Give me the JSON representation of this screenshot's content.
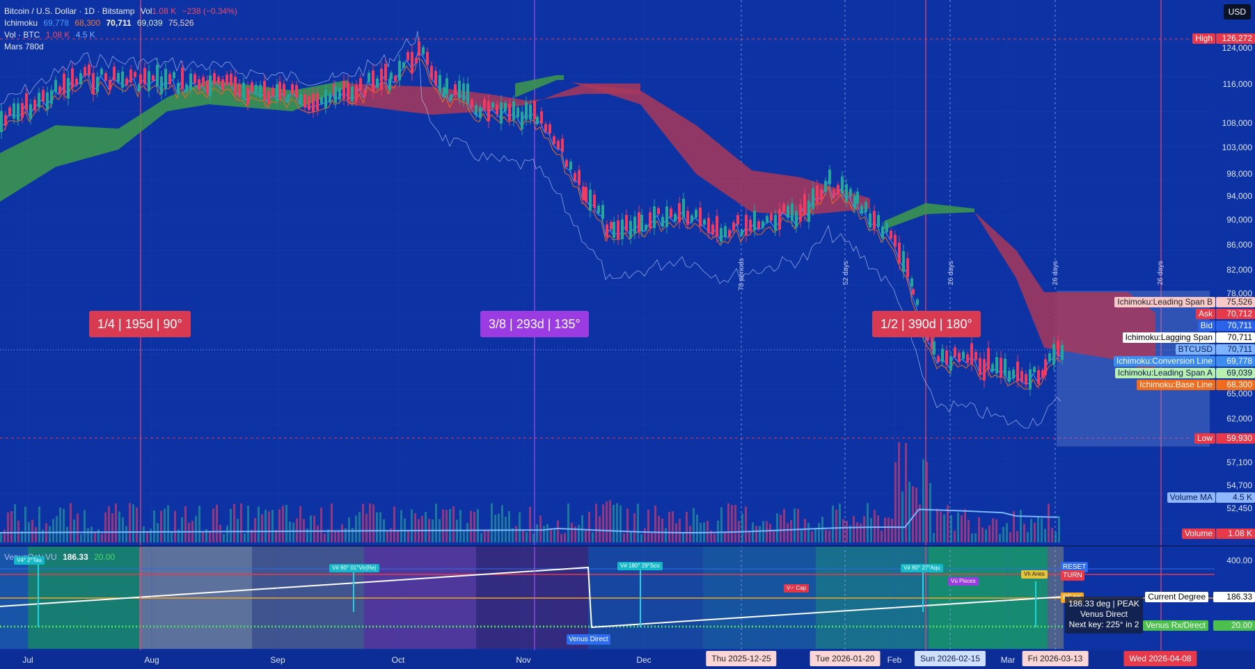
{
  "header": {
    "symbol": "Bitcoin / U.S. Dollar · 1D · Bitstamp",
    "vol_label": "Vol",
    "vol_value": "1.08 K",
    "change": "−238 (−0.34%)",
    "ichimoku_label": "Ichimoku",
    "ichimoku_values": [
      "69,778",
      "68,300",
      "70,711",
      "69,039",
      "75,526"
    ],
    "vol_btc_label": "Vol · BTC",
    "vol_btc_values": [
      "1.08 K",
      "4.5 K"
    ],
    "mars_label": "Mars 780d",
    "currency_button": "USD"
  },
  "y_axis": {
    "ticks": [
      "124,000",
      "116,000",
      "108,000",
      "103,000",
      "98,000",
      "94,000",
      "90,000",
      "86,000",
      "82,000",
      "78,000",
      "65,000",
      "62,000",
      "57,100",
      "54,700",
      "52,450"
    ],
    "scale": "log"
  },
  "price_labels": [
    {
      "name": "High",
      "value": "126,272",
      "color": "#e8394a"
    },
    {
      "name": "Ichimoku:Leading Span B",
      "value": "75,526",
      "color": "#f8c9c9",
      "text": "#222"
    },
    {
      "name": "Ask",
      "value": "70,712",
      "color": "#e8394a"
    },
    {
      "name": "Bid",
      "value": "70,711",
      "color": "#2a62e8"
    },
    {
      "name": "Ichimoku:Lagging Span",
      "value": "70,711",
      "color": "#ffffff",
      "text": "#000"
    },
    {
      "name": "BTCUSD",
      "value": "70,711",
      "color": "#7eb4ff",
      "text": "#0a1b4d"
    },
    {
      "name": "Ichimoku:Conversion Line",
      "value": "69,778",
      "color": "#3d8cf0"
    },
    {
      "name": "Ichimoku:Leading Span A",
      "value": "69,039",
      "color": "#b8f0b0",
      "text": "#0a1b4d"
    },
    {
      "name": "Ichimoku:Base Line",
      "value": "68,300",
      "color": "#f06c1c"
    },
    {
      "name": "Low",
      "value": "59,930",
      "color": "#e8394a"
    },
    {
      "name": "Volume MA",
      "value": "4.5 K",
      "color": "#90b8ff",
      "text": "#0a1b4d"
    },
    {
      "name": "Volume",
      "value": "1.08 K",
      "color": "#e8394a"
    }
  ],
  "bubbles": [
    {
      "text": "1/4 | 195d | 90°",
      "color": "#d83a52"
    },
    {
      "text": "3/8 | 293d | 135°",
      "color": "#9b3be2"
    },
    {
      "text": "1/2 | 390d | 180°",
      "color": "#d83a52"
    }
  ],
  "period_labels": [
    "78 periods",
    "52 days",
    "26 days",
    "26 days",
    "26 days"
  ],
  "x_axis": {
    "months": [
      "Jul",
      "Aug",
      "Sep",
      "Oct",
      "Nov",
      "Dec",
      "Feb",
      "Mar"
    ],
    "dates": [
      "Thu 2025-12-25",
      "Tue 2026-01-20",
      "Sun 2026-02-15",
      "Fri 2026-03-13",
      "Wed 2026-04-08"
    ]
  },
  "indicator": {
    "title": "VenusOct+VU",
    "value": "186.33",
    "value2": "20.00",
    "axis_tick": "400.00",
    "mini_tags": [
      "V4° 2°Tau",
      "V# 90° 01°Vir(Re)",
      "V# 180° 29°Sco",
      "V♂ Cap",
      "V# 90° 27°Aqu",
      "Vü Pisces",
      "Vh Aries"
    ],
    "venus_direct": "Venus Direct",
    "reset": "RESET",
    "turn": "TURN",
    "peak": "PEAK",
    "info_lines": [
      "186.33 deg | PEAK",
      "Venus Direct",
      "Next key: 225° in 2"
    ],
    "current_degree_label": "Current Degree",
    "current_degree_value": "186.33",
    "rx_label": "Venus Rx/Direct",
    "rx_value": "20.00"
  },
  "colors": {
    "bg": "#0d32a3",
    "bull": "#26a69a",
    "bear": "#ef3a62",
    "cloud_up": "#3e9a4a",
    "cloud_down": "#a8385c"
  }
}
